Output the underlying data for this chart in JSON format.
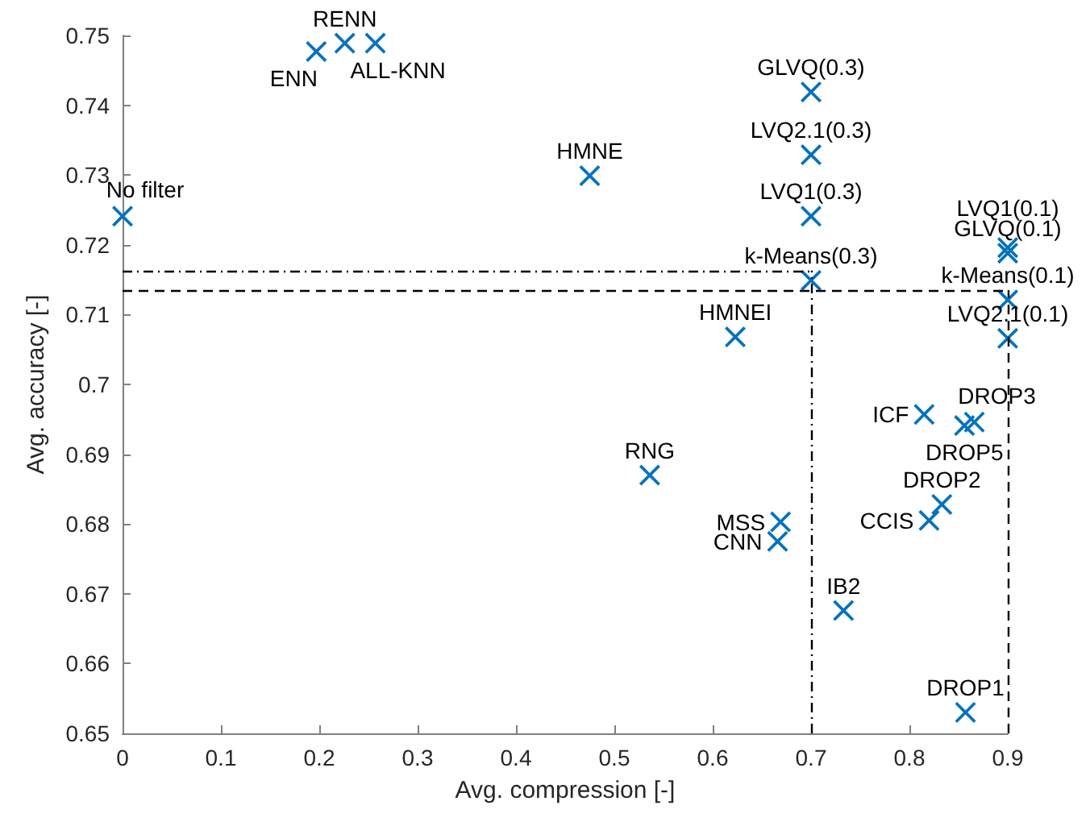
{
  "chart_data": {
    "type": "scatter",
    "xlabel": "Avg. compression [-]",
    "ylabel": "Avg. accuracy [-]",
    "xlim": [
      0,
      0.9
    ],
    "xticks": [
      0,
      0.1,
      0.2,
      0.3,
      0.4,
      0.5,
      0.6,
      0.7,
      0.8,
      0.9
    ],
    "ylim": [
      0.65,
      0.75
    ],
    "yticks": [
      0.65,
      0.66,
      0.67,
      0.68,
      0.69,
      0.7,
      0.71,
      0.72,
      0.73,
      0.74,
      0.75
    ],
    "grid": false,
    "marker": "cross",
    "series": [
      {
        "color": "#0072bd",
        "x": [
          0,
          0.197,
          0.226,
          0.257,
          0.475,
          0.623,
          0.536,
          0.669,
          0.666,
          0.733,
          0.7,
          0.7,
          0.7,
          0.7,
          0.9,
          0.9,
          0.9,
          0.9,
          0.815,
          0.866,
          0.856,
          0.833,
          0.82,
          0.857
        ],
        "values": [
          0.7241,
          0.7477,
          0.7489,
          0.7489,
          0.7299,
          0.7068,
          0.687,
          0.6803,
          0.6775,
          0.6676,
          0.7419,
          0.7329,
          0.7241,
          0.7149,
          0.7196,
          0.7188,
          0.7121,
          0.7066,
          0.6957,
          0.6946,
          0.6941,
          0.6828,
          0.6805,
          0.653
        ],
        "value_labels": [
          "No filter",
          "ENN",
          "RENN",
          "ALL-KNN",
          "HMNE",
          "HMNEI",
          "RNG",
          "MSS",
          "CNN",
          "IB2",
          "GLVQ(0.3)",
          "LVQ2.1(0.3)",
          "LVQ1(0.3)",
          "k-Means(0.3)",
          "LVQ1(0.1)",
          "GLVQ(0.1)",
          "k-Means(0.1)",
          "LVQ2.1(0.1)",
          "ICF",
          "DROP3",
          "DROP5",
          "DROP2",
          "CCIS",
          "DROP1"
        ]
      }
    ],
    "ref_lines": [
      {
        "axis": "y",
        "value": 0.7163,
        "line_style": "dashdot",
        "color": "#000000"
      },
      {
        "axis": "x",
        "value": 0.7,
        "line_style": "dashdot",
        "color": "#000000"
      },
      {
        "axis": "y",
        "value": 0.7135,
        "line_style": "dashed",
        "color": "#000000"
      },
      {
        "axis": "x",
        "value": 0.9,
        "line_style": "dashed",
        "color": "#000000"
      }
    ]
  }
}
